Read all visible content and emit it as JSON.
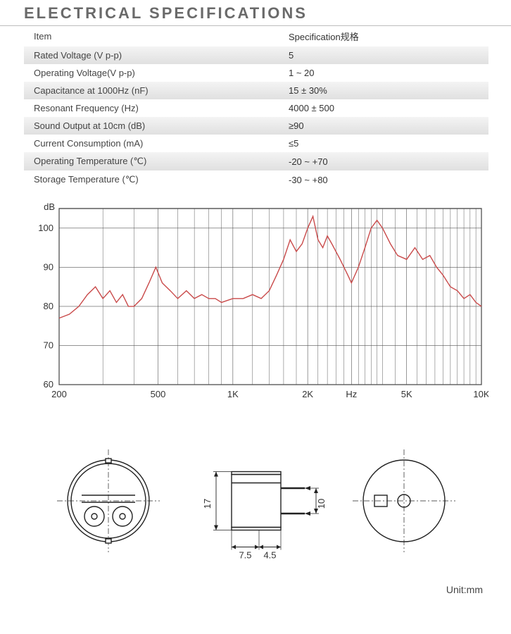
{
  "title": "ELECTRICAL SPECIFICATIONS",
  "table": {
    "header_item": "Item",
    "header_spec": "Specification规格",
    "rows": [
      {
        "label": "Rated Voltage (V p-p)",
        "value": "5",
        "shade": true
      },
      {
        "label": "Operating Voltage(V p-p)",
        "value": "1 ~ 20",
        "shade": false
      },
      {
        "label": "Capacitance  at  1000Hz (nF)",
        "value": "15 ± 30%",
        "shade": true
      },
      {
        "label": "Resonant Frequency (Hz)",
        "value": "4000 ± 500",
        "shade": false
      },
      {
        "label": "Sound Output  at  10cm (dB)",
        "value": "≥90",
        "shade": true
      },
      {
        "label": "Current Consumption (mA)",
        "value": "≤5",
        "shade": false
      },
      {
        "label": "Operating Temperature (℃)",
        "value": "-20 ~ +70",
        "shade": true
      },
      {
        "label": "Storage Temperature (℃)",
        "value": "-30 ~ +80",
        "shade": false
      }
    ]
  },
  "chart": {
    "type": "line",
    "y_label": "dB",
    "y_min": 60,
    "y_max": 105,
    "y_ticks": [
      60,
      70,
      80,
      90,
      100
    ],
    "x_scale": "log",
    "x_min": 200,
    "x_max": 10000,
    "x_ticks": [
      {
        "v": 200,
        "label": "200"
      },
      {
        "v": 500,
        "label": "500"
      },
      {
        "v": 1000,
        "label": "1K"
      },
      {
        "v": 2000,
        "label": "2K"
      },
      {
        "v": 3000,
        "label": "Hz"
      },
      {
        "v": 5000,
        "label": "5K"
      },
      {
        "v": 10000,
        "label": "10K"
      }
    ],
    "grid_stroke": "#555555",
    "grid_width": 0.6,
    "border_stroke": "#333333",
    "border_width": 1.2,
    "line_color": "#c94a4a",
    "line_width": 1.4,
    "text_color": "#333333",
    "axis_fontsize": 13,
    "series": [
      {
        "x": 200,
        "y": 77
      },
      {
        "x": 220,
        "y": 78
      },
      {
        "x": 240,
        "y": 80
      },
      {
        "x": 260,
        "y": 83
      },
      {
        "x": 280,
        "y": 85
      },
      {
        "x": 300,
        "y": 82
      },
      {
        "x": 320,
        "y": 84
      },
      {
        "x": 340,
        "y": 81
      },
      {
        "x": 360,
        "y": 83
      },
      {
        "x": 380,
        "y": 80
      },
      {
        "x": 400,
        "y": 80
      },
      {
        "x": 430,
        "y": 82
      },
      {
        "x": 460,
        "y": 86
      },
      {
        "x": 490,
        "y": 90
      },
      {
        "x": 520,
        "y": 86
      },
      {
        "x": 560,
        "y": 84
      },
      {
        "x": 600,
        "y": 82
      },
      {
        "x": 650,
        "y": 84
      },
      {
        "x": 700,
        "y": 82
      },
      {
        "x": 750,
        "y": 83
      },
      {
        "x": 800,
        "y": 82
      },
      {
        "x": 850,
        "y": 82
      },
      {
        "x": 900,
        "y": 81
      },
      {
        "x": 1000,
        "y": 82
      },
      {
        "x": 1100,
        "y": 82
      },
      {
        "x": 1200,
        "y": 83
      },
      {
        "x": 1300,
        "y": 82
      },
      {
        "x": 1400,
        "y": 84
      },
      {
        "x": 1500,
        "y": 88
      },
      {
        "x": 1600,
        "y": 92
      },
      {
        "x": 1700,
        "y": 97
      },
      {
        "x": 1800,
        "y": 94
      },
      {
        "x": 1900,
        "y": 96
      },
      {
        "x": 2000,
        "y": 100
      },
      {
        "x": 2100,
        "y": 103
      },
      {
        "x": 2200,
        "y": 97
      },
      {
        "x": 2300,
        "y": 95
      },
      {
        "x": 2400,
        "y": 98
      },
      {
        "x": 2500,
        "y": 96
      },
      {
        "x": 2700,
        "y": 92
      },
      {
        "x": 2900,
        "y": 88
      },
      {
        "x": 3000,
        "y": 86
      },
      {
        "x": 3200,
        "y": 90
      },
      {
        "x": 3400,
        "y": 95
      },
      {
        "x": 3600,
        "y": 100
      },
      {
        "x": 3800,
        "y": 102
      },
      {
        "x": 4000,
        "y": 100
      },
      {
        "x": 4300,
        "y": 96
      },
      {
        "x": 4600,
        "y": 93
      },
      {
        "x": 5000,
        "y": 92
      },
      {
        "x": 5400,
        "y": 95
      },
      {
        "x": 5800,
        "y": 92
      },
      {
        "x": 6200,
        "y": 93
      },
      {
        "x": 6600,
        "y": 90
      },
      {
        "x": 7000,
        "y": 88
      },
      {
        "x": 7500,
        "y": 85
      },
      {
        "x": 8000,
        "y": 84
      },
      {
        "x": 8500,
        "y": 82
      },
      {
        "x": 9000,
        "y": 83
      },
      {
        "x": 9500,
        "y": 81
      },
      {
        "x": 10000,
        "y": 80
      }
    ],
    "minor_gridlines": [
      300,
      400,
      600,
      700,
      800,
      900,
      1200,
      1400,
      1600,
      1800,
      2200,
      2400,
      2600,
      2800,
      3200,
      3400,
      3600,
      3800,
      4000,
      4500,
      5500,
      6000,
      6500,
      7000,
      7500,
      8000,
      8500,
      9000,
      9500
    ]
  },
  "dimensions": {
    "unit_label": "Unit:mm",
    "height": "17",
    "pin_spacing": "10",
    "width_left": "7.5",
    "width_right": "4.5",
    "stroke": "#222222",
    "text_color": "#333333",
    "fontsize": 13
  }
}
